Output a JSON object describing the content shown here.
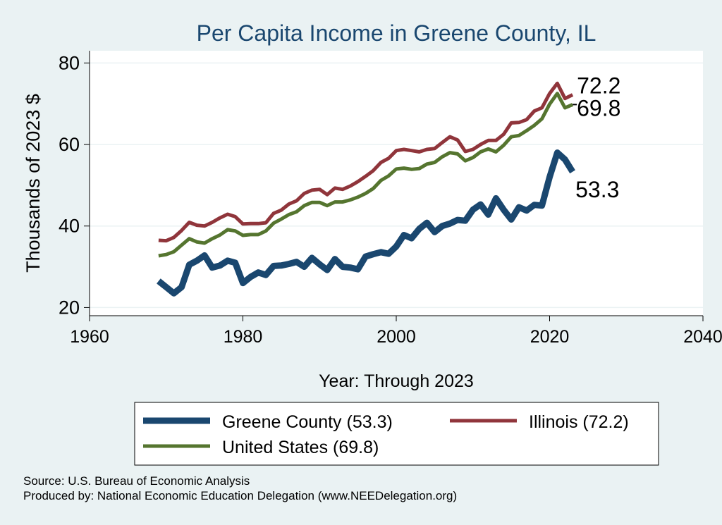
{
  "chart_data": {
    "type": "line",
    "title": "Per Capita Income in Greene County, IL",
    "xlabel": "Year: Through 2023",
    "ylabel": "Thousands of 2023 $",
    "xlim": [
      1960,
      2040
    ],
    "ylim": [
      18,
      83
    ],
    "xticks": [
      1960,
      1980,
      2000,
      2020,
      2040
    ],
    "yticks": [
      20,
      40,
      60,
      80
    ],
    "grid": "horizontal",
    "legend_position": "bottom",
    "x": [
      1969,
      1970,
      1971,
      1972,
      1973,
      1974,
      1975,
      1976,
      1977,
      1978,
      1979,
      1980,
      1981,
      1982,
      1983,
      1984,
      1985,
      1986,
      1987,
      1988,
      1989,
      1990,
      1991,
      1992,
      1993,
      1994,
      1995,
      1996,
      1997,
      1998,
      1999,
      2000,
      2001,
      2002,
      2003,
      2004,
      2005,
      2006,
      2007,
      2008,
      2009,
      2010,
      2011,
      2012,
      2013,
      2014,
      2015,
      2016,
      2017,
      2018,
      2019,
      2020,
      2021,
      2022,
      2023
    ],
    "series": [
      {
        "name": "Greene County (53.3)",
        "color": "#1a476f",
        "end_label": "53.3",
        "values": [
          26.5,
          25.0,
          23.5,
          25.0,
          30.5,
          31.5,
          32.8,
          29.8,
          30.3,
          31.5,
          31.0,
          26.0,
          27.5,
          28.6,
          28.0,
          30.2,
          30.3,
          30.7,
          31.2,
          30.0,
          32.2,
          30.6,
          29.2,
          31.9,
          30.0,
          29.8,
          29.4,
          32.5,
          33.1,
          33.6,
          33.2,
          35.0,
          37.8,
          37.0,
          39.3,
          40.8,
          38.5,
          40.0,
          40.6,
          41.5,
          41.3,
          44.0,
          45.3,
          42.8,
          46.8,
          44.0,
          41.6,
          44.6,
          43.8,
          45.2,
          45.0,
          52.0,
          58.0,
          56.3,
          53.3
        ]
      },
      {
        "name": "Illinois (72.2)",
        "color": "#90353b",
        "end_label": "72.2",
        "values": [
          36.5,
          36.4,
          37.2,
          38.9,
          40.9,
          40.2,
          40.0,
          40.9,
          42.0,
          42.9,
          42.3,
          40.5,
          40.6,
          40.6,
          40.8,
          43.1,
          43.9,
          45.4,
          46.2,
          48.0,
          48.8,
          49.0,
          47.7,
          49.3,
          49.0,
          49.8,
          50.9,
          52.2,
          53.6,
          55.6,
          56.6,
          58.5,
          58.8,
          58.5,
          58.2,
          58.8,
          59.0,
          60.5,
          61.9,
          61.1,
          58.3,
          58.8,
          60.0,
          61.0,
          61.0,
          62.5,
          65.3,
          65.4,
          66.1,
          68.2,
          69.0,
          72.5,
          75.0,
          71.3,
          72.2
        ]
      },
      {
        "name": "United States (69.8)",
        "color": "#55752f",
        "end_label": "69.8",
        "values": [
          32.7,
          33.0,
          33.7,
          35.3,
          36.9,
          36.1,
          35.8,
          36.9,
          37.8,
          39.1,
          38.8,
          37.7,
          37.9,
          37.9,
          38.8,
          40.7,
          41.7,
          42.8,
          43.5,
          45.0,
          45.8,
          45.8,
          45.0,
          45.9,
          45.9,
          46.4,
          47.1,
          48.0,
          49.2,
          51.2,
          52.3,
          54.0,
          54.2,
          53.9,
          54.1,
          55.2,
          55.6,
          57.0,
          58.0,
          57.7,
          56.0,
          56.8,
          58.2,
          58.9,
          58.2,
          59.8,
          61.9,
          62.2,
          63.4,
          64.7,
          66.3,
          69.9,
          72.5,
          69.0,
          69.8
        ]
      }
    ],
    "source": "Source: U.S. Bureau of Economic Analysis",
    "producer": "Produced by: National Economic Education Delegation (www.NEEDelegation.org)"
  },
  "colors": {
    "background": "#eaf2f3",
    "plot_background": "#ffffff",
    "grid": "#eaf2f3",
    "title": "#1a476f"
  }
}
